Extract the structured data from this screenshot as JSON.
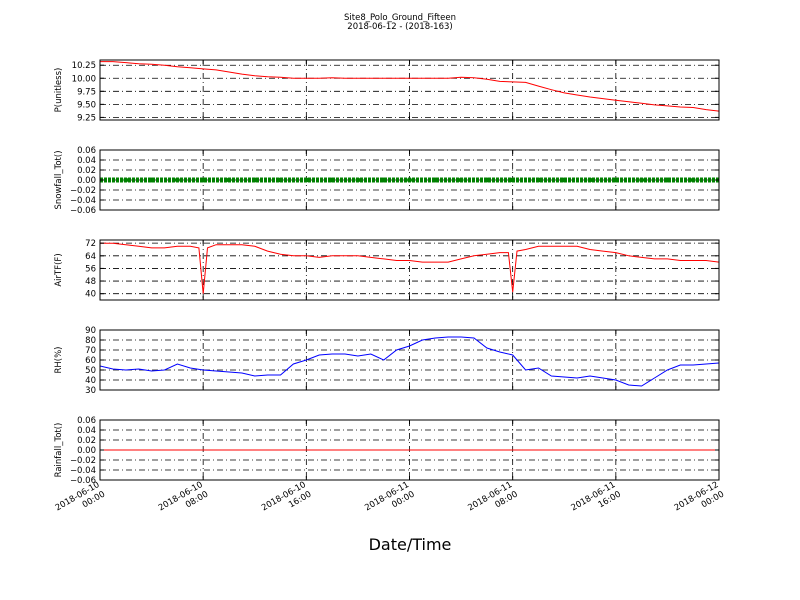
{
  "title": "Site8_Polo_Ground_Fifteen",
  "subtitle": "2018-06-12 - (2018-163)",
  "xlabel": "Date/Time",
  "x_tick_labels": [
    [
      "2018-06-10",
      "00:00"
    ],
    [
      "2018-06-10",
      "08:00"
    ],
    [
      "2018-06-10",
      "16:00"
    ],
    [
      "2018-06-11",
      "00:00"
    ],
    [
      "2018-06-11",
      "08:00"
    ],
    [
      "2018-06-11",
      "16:00"
    ],
    [
      "2018-06-12",
      "00:00"
    ]
  ],
  "colors": {
    "pressure": "#ff0000",
    "snowfall": "#008000",
    "airtf": "#ff0000",
    "rh": "#0000ff",
    "rainfall": "#ff0000",
    "grid": "#000000"
  },
  "chart_data": [
    {
      "type": "line",
      "ylabel": "P(unitless)",
      "ylim": [
        9.2,
        10.35
      ],
      "yticks": [
        9.25,
        9.5,
        9.75,
        10.0,
        10.25
      ],
      "ytick_labels": [
        "9.25",
        "9.50",
        "9.75",
        "10.00",
        "10.25"
      ],
      "xlim": [
        "2018-06-10 00:00",
        "2018-06-12 00:00"
      ],
      "grid": true,
      "series": [
        {
          "color": "#ff0000",
          "x": [
            "2018-06-10 00:00",
            "2018-06-10 01:00",
            "2018-06-10 02:00",
            "2018-06-10 03:00",
            "2018-06-10 04:00",
            "2018-06-10 05:00",
            "2018-06-10 06:00",
            "2018-06-10 07:00",
            "2018-06-10 08:00",
            "2018-06-10 09:00",
            "2018-06-10 10:00",
            "2018-06-10 11:00",
            "2018-06-10 12:00",
            "2018-06-10 13:00",
            "2018-06-10 14:00",
            "2018-06-10 15:00",
            "2018-06-10 16:00",
            "2018-06-10 17:00",
            "2018-06-10 18:00",
            "2018-06-10 19:00",
            "2018-06-10 20:00",
            "2018-06-10 21:00",
            "2018-06-10 22:00",
            "2018-06-10 23:00",
            "2018-06-11 00:00",
            "2018-06-11 01:00",
            "2018-06-11 02:00",
            "2018-06-11 03:00",
            "2018-06-11 04:00",
            "2018-06-11 05:00",
            "2018-06-11 06:00",
            "2018-06-11 07:00",
            "2018-06-11 08:00",
            "2018-06-11 09:00",
            "2018-06-11 10:00",
            "2018-06-11 11:00",
            "2018-06-11 12:00",
            "2018-06-11 13:00",
            "2018-06-11 14:00",
            "2018-06-11 15:00",
            "2018-06-11 16:00",
            "2018-06-11 17:00",
            "2018-06-11 18:00",
            "2018-06-11 19:00",
            "2018-06-11 20:00",
            "2018-06-11 21:00",
            "2018-06-11 22:00",
            "2018-06-11 23:00",
            "2018-06-12 00:00"
          ],
          "y": [
            10.32,
            10.32,
            10.3,
            10.28,
            10.27,
            10.25,
            10.22,
            10.2,
            10.18,
            10.16,
            10.12,
            10.08,
            10.05,
            10.03,
            10.02,
            10.0,
            10.0,
            10.0,
            10.01,
            10.0,
            10.0,
            10.0,
            10.0,
            10.0,
            10.0,
            10.0,
            10.0,
            10.0,
            10.02,
            10.01,
            9.98,
            9.94,
            9.93,
            9.92,
            9.85,
            9.78,
            9.72,
            9.68,
            9.64,
            9.61,
            9.58,
            9.55,
            9.52,
            9.49,
            9.47,
            9.45,
            9.44,
            9.4,
            9.37
          ]
        }
      ]
    },
    {
      "type": "scatter",
      "ylabel": "Snowfall_Tot()",
      "ylim": [
        -0.06,
        0.06
      ],
      "yticks": [
        -0.06,
        -0.04,
        -0.02,
        0.0,
        0.02,
        0.04,
        0.06
      ],
      "ytick_labels": [
        "−0.06",
        "−0.04",
        "−0.02",
        "0.00",
        "0.02",
        "0.04",
        "0.06"
      ],
      "xlim": [
        "2018-06-10 00:00",
        "2018-06-12 00:00"
      ],
      "grid": true,
      "series": [
        {
          "color": "#008000",
          "x": [
            "2018-06-10 00:00",
            "2018-06-10 02:00",
            "2018-06-10 04:00",
            "2018-06-10 06:00",
            "2018-06-10 08:00",
            "2018-06-10 10:00",
            "2018-06-10 12:00",
            "2018-06-10 14:00",
            "2018-06-10 16:00",
            "2018-06-10 18:00",
            "2018-06-10 20:00",
            "2018-06-10 22:00",
            "2018-06-11 00:00",
            "2018-06-11 02:00",
            "2018-06-11 04:00",
            "2018-06-11 06:00",
            "2018-06-11 08:00",
            "2018-06-11 10:00",
            "2018-06-11 12:00",
            "2018-06-11 14:00",
            "2018-06-11 16:00",
            "2018-06-11 18:00",
            "2018-06-11 20:00",
            "2018-06-11 22:00",
            "2018-06-12 00:00"
          ],
          "y": [
            0,
            0,
            0,
            0,
            0,
            0,
            0,
            0,
            0,
            0,
            0,
            0,
            0,
            0,
            0,
            0,
            0,
            0,
            0,
            0,
            0,
            0,
            0,
            0,
            0
          ]
        }
      ]
    },
    {
      "type": "line",
      "ylabel": "AirTF(F)",
      "ylim": [
        36,
        74
      ],
      "yticks": [
        40,
        48,
        56,
        64,
        72
      ],
      "ytick_labels": [
        "40",
        "48",
        "56",
        "64",
        "72"
      ],
      "xlim": [
        "2018-06-10 00:00",
        "2018-06-12 00:00"
      ],
      "grid": true,
      "series": [
        {
          "color": "#ff0000",
          "x": [
            "2018-06-10 00:00",
            "2018-06-10 01:00",
            "2018-06-10 02:00",
            "2018-06-10 03:00",
            "2018-06-10 04:00",
            "2018-06-10 05:00",
            "2018-06-10 06:00",
            "2018-06-10 07:00",
            "2018-06-10 07:40",
            "2018-06-10 08:00",
            "2018-06-10 08:20",
            "2018-06-10 09:00",
            "2018-06-10 10:00",
            "2018-06-10 11:00",
            "2018-06-10 12:00",
            "2018-06-10 13:00",
            "2018-06-10 14:00",
            "2018-06-10 15:00",
            "2018-06-10 16:00",
            "2018-06-10 17:00",
            "2018-06-10 18:00",
            "2018-06-10 19:00",
            "2018-06-10 20:00",
            "2018-06-10 21:00",
            "2018-06-10 22:00",
            "2018-06-10 23:00",
            "2018-06-11 00:00",
            "2018-06-11 01:00",
            "2018-06-11 02:00",
            "2018-06-11 03:00",
            "2018-06-11 04:00",
            "2018-06-11 05:00",
            "2018-06-11 06:00",
            "2018-06-11 07:00",
            "2018-06-11 07:40",
            "2018-06-11 08:00",
            "2018-06-11 08:20",
            "2018-06-11 09:00",
            "2018-06-11 10:00",
            "2018-06-11 11:00",
            "2018-06-11 12:00",
            "2018-06-11 13:00",
            "2018-06-11 14:00",
            "2018-06-11 15:00",
            "2018-06-11 16:00",
            "2018-06-11 17:00",
            "2018-06-11 18:00",
            "2018-06-11 19:00",
            "2018-06-11 20:00",
            "2018-06-11 21:00",
            "2018-06-11 22:00",
            "2018-06-11 23:00",
            "2018-06-12 00:00"
          ],
          "y": [
            72,
            72,
            71,
            70,
            69,
            69,
            70,
            70,
            69,
            40,
            69,
            71,
            71,
            71,
            70,
            67,
            65,
            64,
            64,
            63,
            64,
            64,
            64,
            63,
            62,
            61,
            61,
            60,
            60,
            60,
            62,
            64,
            65,
            66,
            66,
            41,
            67,
            68,
            70,
            70,
            70,
            70,
            68,
            67,
            66,
            64,
            63,
            62,
            62,
            61,
            61,
            61,
            60
          ]
        }
      ]
    },
    {
      "type": "line",
      "ylabel": "RH(%)",
      "ylim": [
        30,
        90
      ],
      "yticks": [
        30,
        40,
        50,
        60,
        70,
        80,
        90
      ],
      "ytick_labels": [
        "30",
        "40",
        "50",
        "60",
        "70",
        "80",
        "90"
      ],
      "xlim": [
        "2018-06-10 00:00",
        "2018-06-12 00:00"
      ],
      "grid": true,
      "series": [
        {
          "color": "#0000ff",
          "x": [
            "2018-06-10 00:00",
            "2018-06-10 01:00",
            "2018-06-10 02:00",
            "2018-06-10 03:00",
            "2018-06-10 04:00",
            "2018-06-10 05:00",
            "2018-06-10 06:00",
            "2018-06-10 07:00",
            "2018-06-10 08:00",
            "2018-06-10 09:00",
            "2018-06-10 10:00",
            "2018-06-10 11:00",
            "2018-06-10 12:00",
            "2018-06-10 13:00",
            "2018-06-10 14:00",
            "2018-06-10 15:00",
            "2018-06-10 16:00",
            "2018-06-10 17:00",
            "2018-06-10 18:00",
            "2018-06-10 19:00",
            "2018-06-10 20:00",
            "2018-06-10 21:00",
            "2018-06-10 22:00",
            "2018-06-10 23:00",
            "2018-06-11 00:00",
            "2018-06-11 01:00",
            "2018-06-11 02:00",
            "2018-06-11 03:00",
            "2018-06-11 04:00",
            "2018-06-11 05:00",
            "2018-06-11 06:00",
            "2018-06-11 07:00",
            "2018-06-11 08:00",
            "2018-06-11 09:00",
            "2018-06-11 10:00",
            "2018-06-11 11:00",
            "2018-06-11 12:00",
            "2018-06-11 13:00",
            "2018-06-11 14:00",
            "2018-06-11 15:00",
            "2018-06-11 16:00",
            "2018-06-11 17:00",
            "2018-06-11 18:00",
            "2018-06-11 19:00",
            "2018-06-11 20:00",
            "2018-06-11 21:00",
            "2018-06-11 22:00",
            "2018-06-11 23:00",
            "2018-06-12 00:00"
          ],
          "y": [
            54,
            51,
            50,
            51,
            49,
            50,
            56,
            52,
            50,
            49,
            48,
            47,
            44,
            45,
            45,
            56,
            60,
            65,
            66,
            66,
            64,
            66,
            60,
            70,
            74,
            80,
            82,
            83,
            83,
            82,
            72,
            68,
            65,
            50,
            52,
            44,
            43,
            42,
            44,
            42,
            40,
            35,
            34,
            42,
            50,
            55,
            55,
            56,
            57
          ]
        }
      ]
    },
    {
      "type": "line",
      "ylabel": "Rainfall_Tot()",
      "ylim": [
        -0.06,
        0.06
      ],
      "yticks": [
        -0.06,
        -0.04,
        -0.02,
        0.0,
        0.02,
        0.04,
        0.06
      ],
      "ytick_labels": [
        "−0.06",
        "−0.04",
        "−0.02",
        "0.00",
        "0.02",
        "0.04",
        "0.06"
      ],
      "xlim": [
        "2018-06-10 00:00",
        "2018-06-12 00:00"
      ],
      "grid": true,
      "series": [
        {
          "color": "#ff0000",
          "x": [
            "2018-06-10 00:00",
            "2018-06-12 00:00"
          ],
          "y": [
            0,
            0
          ]
        }
      ]
    }
  ]
}
